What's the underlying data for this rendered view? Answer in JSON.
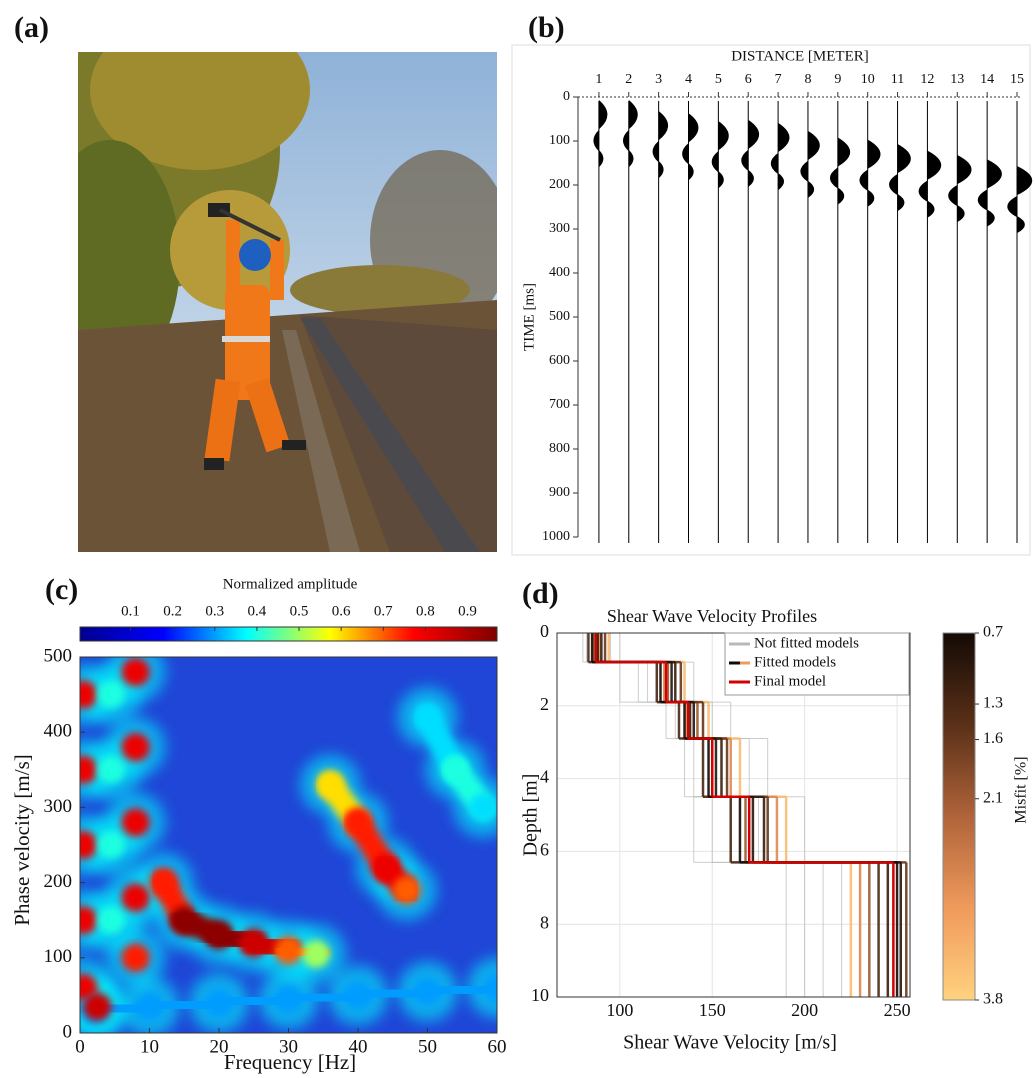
{
  "panel_labels": [
    "(a)",
    "(b)",
    "(c)",
    "(d)"
  ],
  "chart_data": [
    {
      "type": "wiggle",
      "xlabel": "DISTANCE [METER]",
      "ylabel": "TIME [ms]",
      "x": [
        1,
        2,
        3,
        4,
        5,
        6,
        7,
        8,
        9,
        10,
        11,
        12,
        13,
        14,
        15
      ],
      "values": [
        40,
        40,
        65,
        70,
        88,
        85,
        92,
        110,
        125,
        130,
        140,
        155,
        165,
        175,
        190
      ],
      "color": "#000000",
      "xlim": [
        0.3,
        15.1
      ],
      "xticks": [
        1,
        2,
        3,
        4,
        5,
        6,
        7,
        8,
        9,
        10,
        11,
        12,
        13,
        14,
        15
      ],
      "ylim": [
        0,
        1000
      ],
      "yticks": [
        0,
        100,
        200,
        300,
        400,
        500,
        600,
        700,
        800,
        900,
        1000
      ],
      "y_inverted": true
    },
    {
      "type": "heatmap",
      "colorbar_label": "Normalized amplitude",
      "xlabel": "Frequency [Hz]",
      "ylabel": "Phase velocity [m/s]",
      "xlim": [
        0,
        60
      ],
      "xticks": [
        0,
        10,
        20,
        30,
        40,
        50,
        60
      ],
      "ylim": [
        0,
        500
      ],
      "yticks": [
        0,
        100,
        200,
        300,
        400,
        500
      ],
      "clim": [
        -0.02,
        0.97
      ],
      "cticks": [
        0.1,
        0.2,
        0.3,
        0.4,
        0.5,
        0.6,
        0.7,
        0.8,
        0.9
      ],
      "colormap": [
        "#00008f",
        "#0000ff",
        "#00ffff",
        "#ffff00",
        "#ff0000",
        "#800000"
      ],
      "background_color": "#1f46d6",
      "ridges": [
        {
          "x": [
            0.5,
            0.5,
            0.5,
            0.5,
            0.5
          ],
          "y": [
            450,
            350,
            250,
            150,
            60
          ],
          "amplitude": [
            0.8,
            0.8,
            0.8,
            0.8,
            0.8
          ]
        },
        {
          "x": [
            4.5,
            4.5,
            4.5,
            4.5
          ],
          "y": [
            450,
            350,
            250,
            150
          ],
          "amplitude": [
            0.4,
            0.4,
            0.4,
            0.4
          ]
        },
        {
          "x": [
            8,
            8,
            8,
            8,
            8
          ],
          "y": [
            480,
            380,
            280,
            180,
            100
          ],
          "amplitude": [
            0.8,
            0.8,
            0.8,
            0.8,
            0.75
          ]
        },
        {
          "x": [
            12,
            15,
            20,
            25,
            30,
            34
          ],
          "y": [
            200,
            150,
            130,
            120,
            110,
            105
          ],
          "amplitude": [
            0.75,
            0.95,
            0.95,
            0.85,
            0.7,
            0.5
          ]
        },
        {
          "x": [
            36,
            40,
            44,
            47
          ],
          "y": [
            330,
            280,
            220,
            190
          ],
          "amplitude": [
            0.6,
            0.75,
            0.8,
            0.7
          ]
        },
        {
          "x": [
            50,
            54,
            58
          ],
          "y": [
            420,
            350,
            300
          ],
          "amplitude": [
            0.35,
            0.4,
            0.35
          ]
        },
        {
          "x": [
            2,
            10,
            20,
            30,
            40,
            50,
            60
          ],
          "y": [
            30,
            35,
            40,
            45,
            50,
            55,
            60
          ],
          "amplitude": [
            0.3,
            0.3,
            0.3,
            0.3,
            0.3,
            0.3,
            0.3
          ]
        },
        {
          "x": [
            2.5
          ],
          "y": [
            35
          ],
          "amplitude": [
            0.85
          ]
        }
      ]
    },
    {
      "type": "profiles",
      "title": "Shear Wave Velocity Profiles",
      "xlabel": "Shear Wave Velocity [m/s]",
      "ylabel": "Depth [m]",
      "xlim": [
        66,
        257
      ],
      "xticks": [
        100,
        150,
        200,
        250
      ],
      "ylim": [
        0,
        10
      ],
      "yticks": [
        0,
        2,
        4,
        6,
        8,
        10
      ],
      "y_inverted": true,
      "grid": true,
      "layer_depths": [
        0,
        0.8,
        1.9,
        2.9,
        4.5,
        6.3,
        10
      ],
      "colorbar_label": "Misfit [%]",
      "clim": [
        0.7,
        3.8
      ],
      "cticks": [
        0.7,
        1.3,
        1.6,
        2.1,
        3.8
      ],
      "colormap": [
        "#140a05",
        "#5a3018",
        "#b0643a",
        "#f09a5c",
        "#ffd27e"
      ],
      "series": [
        {
          "name": "Not fitted models",
          "color": "#b8b8b8",
          "profiles": [
            [
              80,
              110,
              125,
              140,
              150,
              200
            ],
            [
              100,
              120,
              160,
              170,
              200,
              230
            ],
            [
              85,
              140,
              150,
              180,
              160,
              210
            ],
            [
              95,
              115,
              130,
              135,
              175,
              190
            ],
            [
              82,
              100,
              145,
              150,
              140,
              220
            ]
          ]
        },
        {
          "name": "Fitted models",
          "profiles": [
            [
              85,
              122,
              135,
              148,
              165,
              250
            ],
            [
              88,
              128,
              140,
              152,
              172,
              252
            ],
            [
              90,
              130,
              138,
              155,
              178,
              245
            ],
            [
              83,
              120,
              132,
              145,
              160,
              240
            ],
            [
              92,
              133,
              145,
              158,
              180,
              255
            ],
            [
              86,
              126,
              142,
              150,
              168,
              235
            ],
            [
              89,
              124,
              136,
              160,
              185,
              230
            ],
            [
              94,
              135,
              148,
              165,
              190,
              225
            ]
          ],
          "misfit": [
            0.7,
            0.9,
            1.1,
            1.3,
            1.6,
            2.1,
            2.8,
            3.5
          ]
        },
        {
          "name": "Final model",
          "color": "#d40000",
          "values": [
            87,
            125,
            137,
            150,
            170,
            248
          ]
        }
      ]
    }
  ]
}
